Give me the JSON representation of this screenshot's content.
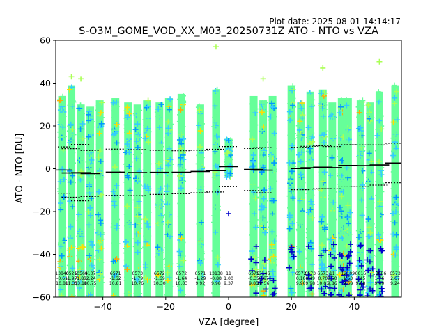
{
  "plot_date": "Plot date: 2025-08-01 14:14:17",
  "chart_data": {
    "type": "scatter",
    "title": "S-O3M_GOME_VOD_XX_M03_20250731Z ATO - NTO vs VZA",
    "xlabel": "VZA [degree]",
    "ylabel": "ATO - NTO [DU]",
    "xlim": [
      -55,
      55
    ],
    "ylim": [
      -60,
      60
    ],
    "xticks": [
      -40,
      -20,
      0,
      20,
      40
    ],
    "yticks": [
      -60,
      -40,
      -20,
      0,
      20,
      40,
      60
    ],
    "grid": false,
    "colors": {
      "main": "#66ff99",
      "cool": "#33ccff",
      "mid": "#0099ff",
      "dark": "#0000cc",
      "warm": "#ffdd00",
      "hot": "#ffaa00",
      "lime": "#aaff55",
      "mean_line": "#000000",
      "std_line": "#000000"
    },
    "columns": [
      {
        "x": -53,
        "count": "13840",
        "mean": "-0.61",
        "std": "10.81",
        "ymax": 34,
        "ymin": -60,
        "dark": 0
      },
      {
        "x": -50,
        "count": "6525",
        "mean": "-1.97",
        "std": "11.35",
        "ymax": 39,
        "ymin": -60,
        "dark": 0
      },
      {
        "x": -47,
        "count": "10564",
        "mean": "-1.83",
        "std": "13.18",
        "ymax": 30,
        "ymin": -60,
        "dark": 0
      },
      {
        "x": -44,
        "count": "9107",
        "mean": "-2.24",
        "std": "10.75",
        "ymax": 29,
        "ymin": -60,
        "dark": 0
      },
      {
        "x": -41,
        "count": "",
        "mean": "",
        "std": "",
        "ymax": 32,
        "ymin": -60,
        "dark": 0
      },
      {
        "x": -36,
        "count": "6571",
        "mean": "-1.62",
        "std": "10.81",
        "ymax": 33,
        "ymin": -60,
        "dark": 0
      },
      {
        "x": -32,
        "count": "",
        "mean": "",
        "std": "",
        "ymax": 31,
        "ymin": -60,
        "dark": 0
      },
      {
        "x": -29,
        "count": "6573",
        "mean": "-1.79",
        "std": "10.76",
        "ymax": 30,
        "ymin": -60,
        "dark": 0
      },
      {
        "x": -26,
        "count": "",
        "mean": "",
        "std": "",
        "ymax": 32,
        "ymin": -60,
        "dark": 0
      },
      {
        "x": -22,
        "count": "6572",
        "mean": "-1.69",
        "std": "10.30",
        "ymax": 31,
        "ymin": -60,
        "dark": 0
      },
      {
        "x": -19,
        "count": "",
        "mean": "",
        "std": "",
        "ymax": 33,
        "ymin": -60,
        "dark": 0
      },
      {
        "x": -15,
        "count": "6572",
        "mean": "-1.64",
        "std": "10.03",
        "ymax": 35,
        "ymin": -60,
        "dark": 0
      },
      {
        "x": -9,
        "count": "6571",
        "mean": "-1.29",
        "std": "9.92",
        "ymax": 30,
        "ymin": -60,
        "dark": 0
      },
      {
        "x": -4,
        "count": "13138",
        "mean": "-0.88",
        "std": "9.98",
        "ymax": 37,
        "ymin": -60,
        "dark": 0
      },
      {
        "x": 0,
        "count": "11",
        "mean": "1.00",
        "std": "9.37",
        "ymax": 14,
        "ymin": -4,
        "dark": 0
      },
      {
        "x": 8,
        "count": "6575",
        "mean": "-0.35",
        "std": "9.85",
        "ymax": 34,
        "ymin": -60,
        "dark": 1
      },
      {
        "x": 11,
        "count": "13146",
        "mean": "-0.67",
        "std": "10.56",
        "ymax": 32,
        "ymin": -60,
        "dark": 1
      },
      {
        "x": 14,
        "count": "",
        "mean": "",
        "std": "",
        "ymax": 34,
        "ymin": -60,
        "dark": 1
      },
      {
        "x": 20,
        "count": "",
        "mean": "",
        "std": "",
        "ymax": 39,
        "ymin": -60,
        "dark": 1
      },
      {
        "x": 23,
        "count": "6572",
        "mean": "0.10",
        "std": "9.90",
        "ymax": 31,
        "ymin": -60,
        "dark": 0
      },
      {
        "x": 26,
        "count": "6573",
        "mean": "0.49",
        "std": "9.98",
        "ymax": 36,
        "ymin": -60,
        "dark": 1
      },
      {
        "x": 30,
        "count": "6573",
        "mean": "0.70",
        "std": "10.01",
        "ymax": 37,
        "ymin": -60,
        "dark": 1
      },
      {
        "x": 33,
        "count": "11",
        "mean": "0.50",
        "std": "9.86",
        "ymax": 31,
        "ymin": -60,
        "dark": 2
      },
      {
        "x": 36,
        "count": "",
        "mean": "",
        "std": "",
        "ymax": 33,
        "ymin": -60,
        "dark": 2
      },
      {
        "x": 38,
        "count": "12109",
        "mean": "1.53",
        "std": "9.68",
        "ymax": 33,
        "ymin": -60,
        "dark": 2
      },
      {
        "x": 42,
        "count": "6616",
        "mean": "1.45",
        "std": "9.68",
        "ymax": 32,
        "ymin": -60,
        "dark": 2
      },
      {
        "x": 45,
        "count": "",
        "mean": "",
        "std": "",
        "ymax": 31,
        "ymin": -60,
        "dark": 2
      },
      {
        "x": 48,
        "count": "13066",
        "mean": "1.76",
        "std": "9.40",
        "ymax": 36,
        "ymin": -60,
        "dark": 2
      },
      {
        "x": 53,
        "count": "6573",
        "mean": "2.67",
        "std": "9.24",
        "ymax": 39,
        "ymin": -60,
        "dark": 0
      }
    ],
    "outliers": [
      {
        "x": -4,
        "y": 57
      },
      {
        "x": 30,
        "y": 47
      },
      {
        "x": 48,
        "y": 50
      },
      {
        "x": 11,
        "y": 42
      },
      {
        "x": -50,
        "y": 43
      },
      {
        "x": -47,
        "y": 42
      },
      {
        "x": 0,
        "y": -21
      },
      {
        "x": 0,
        "y": 8
      }
    ]
  }
}
